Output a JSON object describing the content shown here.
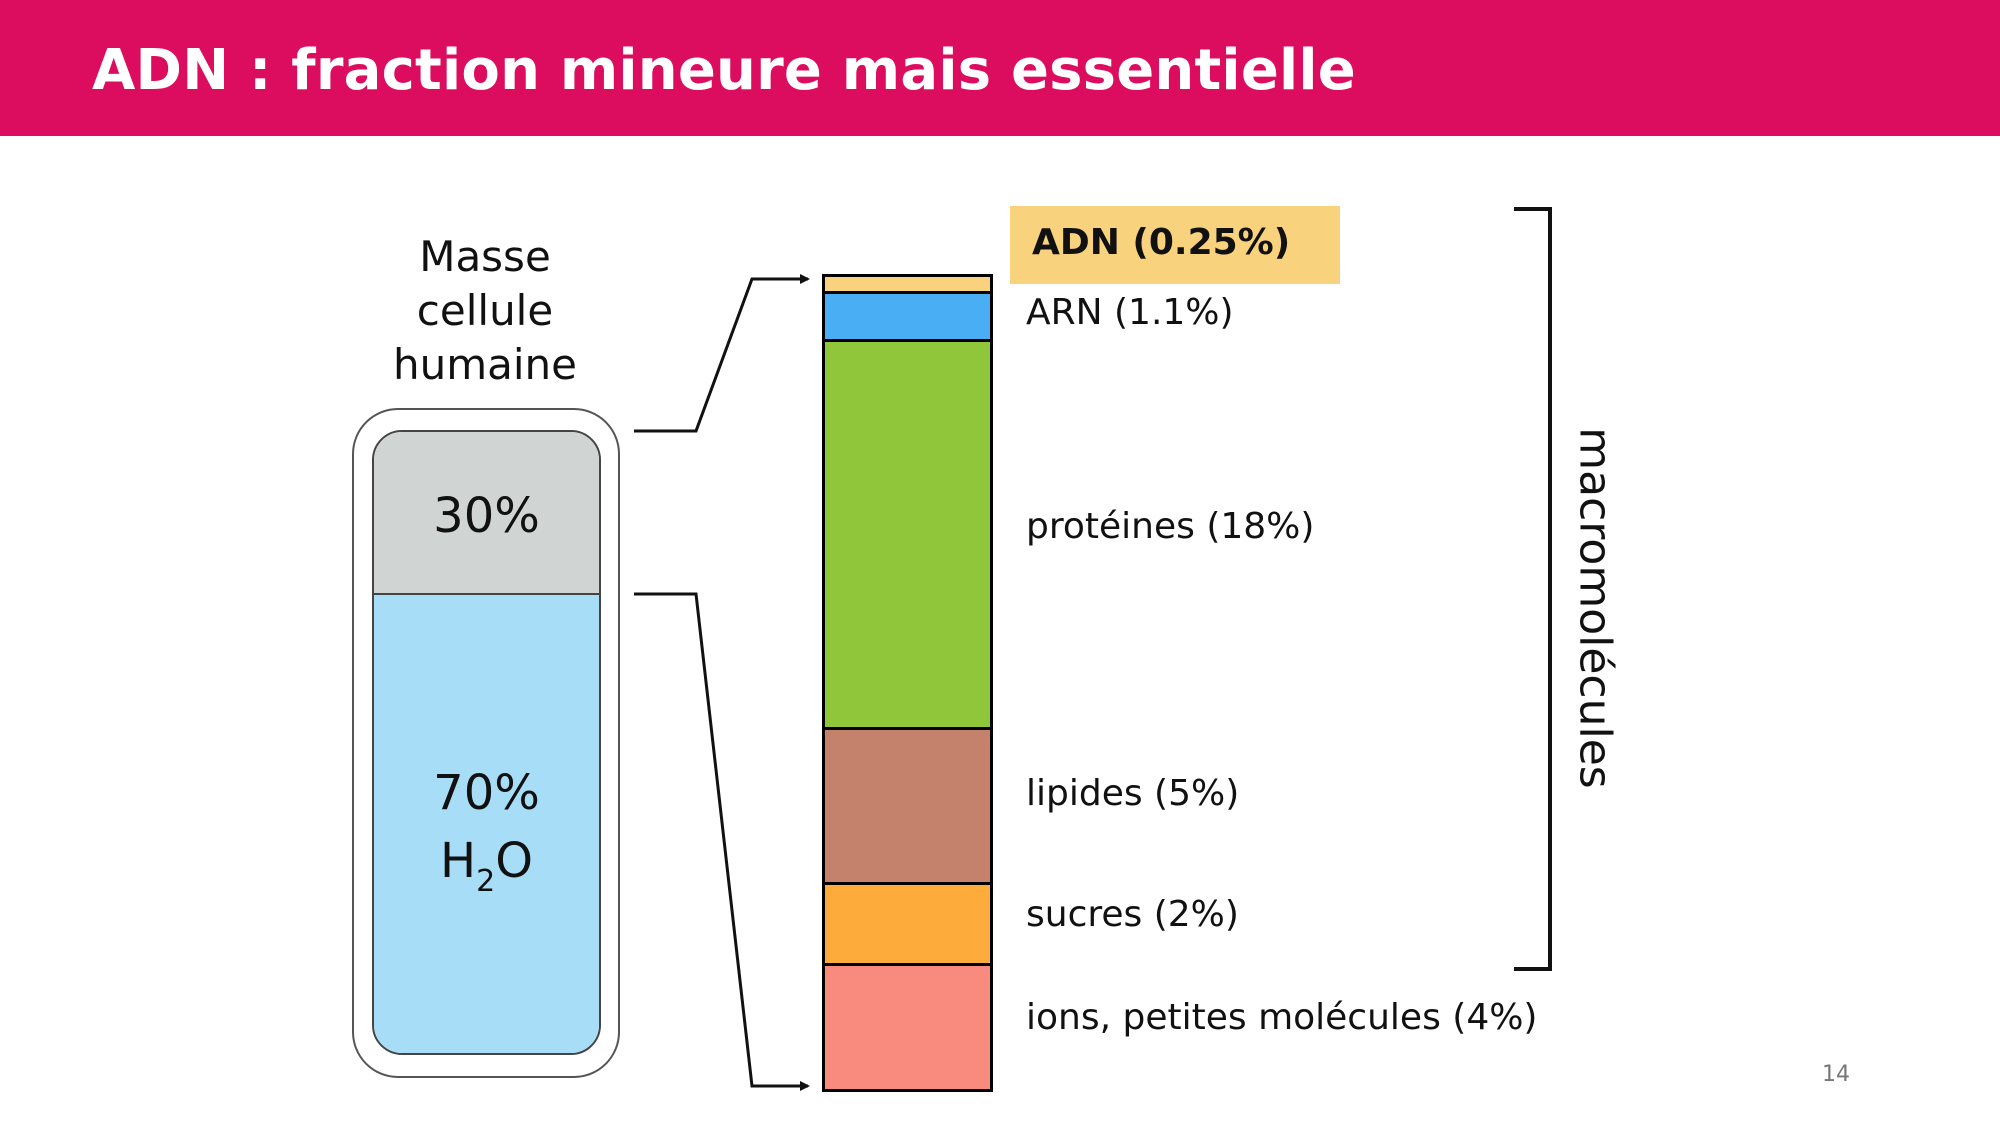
{
  "header": {
    "title": "ADN : fraction mineure mais essentielle",
    "background_color": "#dc0c5f"
  },
  "cell": {
    "label_lines": [
      "Masse",
      "cellule",
      "humaine"
    ],
    "top_part": {
      "percent": "30%",
      "value": 30,
      "color": "#d0d5d3"
    },
    "bottom_part": {
      "percent": "70%",
      "formula_main": "H",
      "formula_sub": "2",
      "formula_end": "O",
      "value": 70,
      "color": "#a8ddf7"
    }
  },
  "composition": [
    {
      "label": "ADN (0.25%)",
      "value": 0.25,
      "color": "#f8d27c",
      "highlighted": true
    },
    {
      "label": "ARN (1.1%)",
      "value": 1.1,
      "color": "#4aaef5"
    },
    {
      "label": "protéines (18%)",
      "value": 18,
      "color": "#8fc63a"
    },
    {
      "label": "lipides (5%)",
      "value": 5,
      "color": "#c4826c"
    },
    {
      "label": "sucres (2%)",
      "value": 2,
      "color": "#fdab3b"
    },
    {
      "label": "ions, petites molécules (4%)",
      "value": 4,
      "color": "#f88a7e"
    }
  ],
  "bracket_label": "macromolécules",
  "page_number": "14"
}
